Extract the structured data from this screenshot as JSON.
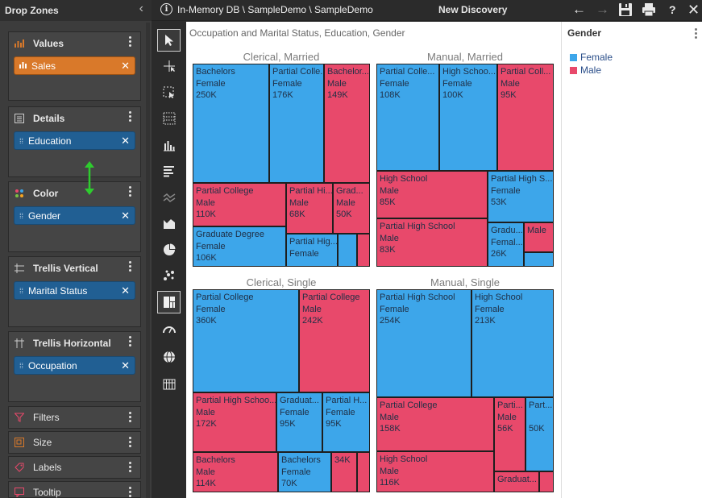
{
  "drop_zones": {
    "title": "Drop Zones",
    "zones": [
      {
        "name": "Values",
        "icon": "bar-chart-icon",
        "pill": "Sales",
        "pill_color": "#d9792a"
      },
      {
        "name": "Details",
        "icon": "list-icon",
        "pill": "Education"
      },
      {
        "name": "Color",
        "icon": "palette-icon",
        "pill": "Gender"
      },
      {
        "name": "Trellis Vertical",
        "icon": "rows-icon",
        "pill": "Marital Status"
      },
      {
        "name": "Trellis Horizontal",
        "icon": "columns-icon",
        "pill": "Occupation"
      }
    ],
    "mini": [
      {
        "name": "Filters",
        "icon": "filter-icon"
      },
      {
        "name": "Size",
        "icon": "size-icon"
      },
      {
        "name": "Labels",
        "icon": "tag-icon"
      },
      {
        "name": "Tooltip",
        "icon": "tooltip-icon"
      }
    ]
  },
  "topbar": {
    "path": "In-Memory DB \\ SampleDemo \\ SampleDemo",
    "title": "New Discovery"
  },
  "chart": {
    "title": "Occupation and Marital Status, Education, Gender",
    "colors": {
      "Female": "#3da6ea",
      "Male": "#e8496b"
    }
  },
  "chart_data": {
    "type": "treemap",
    "title": "Occupation and Marital Status, Education, Gender",
    "panels": [
      {
        "title": "Clerical, Married",
        "cells": [
          {
            "lines": [
              "Bachelors",
              "Female",
              "250K"
            ],
            "gender": "Female"
          },
          {
            "lines": [
              "Partial Colle...",
              "Female",
              "176K"
            ],
            "gender": "Female"
          },
          {
            "lines": [
              "Bachelor...",
              "Male",
              "149K"
            ],
            "gender": "Male"
          },
          {
            "lines": [
              "Partial College",
              "Male",
              "110K"
            ],
            "gender": "Male"
          },
          {
            "lines": [
              "Partial Hi...",
              "Male",
              "68K"
            ],
            "gender": "Male"
          },
          {
            "lines": [
              "Grad...",
              "Male",
              "50K"
            ],
            "gender": "Male"
          },
          {
            "lines": [
              "Graduate Degree",
              "Female",
              "106K"
            ],
            "gender": "Female"
          },
          {
            "lines": [
              "Partial Hig...",
              "Female"
            ],
            "gender": "Female"
          },
          {
            "lines": [],
            "gender": "Female"
          },
          {
            "lines": [],
            "gender": "Male"
          }
        ]
      },
      {
        "title": "Manual, Married",
        "cells": [
          {
            "lines": [
              "Partial Colle...",
              "Female",
              "108K"
            ],
            "gender": "Female"
          },
          {
            "lines": [
              "High Schoo...",
              "Female",
              "100K"
            ],
            "gender": "Female"
          },
          {
            "lines": [
              "Partial Coll...",
              "Male",
              "95K"
            ],
            "gender": "Male"
          },
          {
            "lines": [
              "High School",
              "Male",
              "85K"
            ],
            "gender": "Male"
          },
          {
            "lines": [
              "Partial High S...",
              "Female",
              "53K"
            ],
            "gender": "Female"
          },
          {
            "lines": [
              "Partial High School",
              "Male",
              "83K"
            ],
            "gender": "Male"
          },
          {
            "lines": [
              "Gradu...",
              "Femal...",
              "26K"
            ],
            "gender": "Female"
          },
          {
            "lines": [
              "Male"
            ],
            "gender": "Male"
          },
          {
            "lines": [],
            "gender": "Female"
          }
        ]
      },
      {
        "title": "Clerical, Single",
        "cells": [
          {
            "lines": [
              "Partial College",
              "Female",
              "360K"
            ],
            "gender": "Female"
          },
          {
            "lines": [
              "Partial College",
              "Male",
              "242K"
            ],
            "gender": "Male"
          },
          {
            "lines": [
              "Partial High Schoo...",
              "Male",
              "172K"
            ],
            "gender": "Male"
          },
          {
            "lines": [
              "Graduat...",
              "Female",
              "95K"
            ],
            "gender": "Female"
          },
          {
            "lines": [
              "Partial H...",
              "Female",
              "95K"
            ],
            "gender": "Female"
          },
          {
            "lines": [
              "Bachelors",
              "Male",
              "114K"
            ],
            "gender": "Male"
          },
          {
            "lines": [
              "Bachelors",
              "Female",
              "70K"
            ],
            "gender": "Female"
          },
          {
            "lines": [
              "34K"
            ],
            "gender": "Male"
          },
          {
            "lines": [],
            "gender": "Male"
          }
        ]
      },
      {
        "title": "Manual, Single",
        "cells": [
          {
            "lines": [
              "Partial High School",
              "Female",
              "254K"
            ],
            "gender": "Female"
          },
          {
            "lines": [
              "High School",
              "Female",
              "213K"
            ],
            "gender": "Female"
          },
          {
            "lines": [
              "Partial College",
              "Male",
              "158K"
            ],
            "gender": "Male"
          },
          {
            "lines": [
              "Parti...",
              "Male",
              "56K"
            ],
            "gender": "Male"
          },
          {
            "lines": [
              "Part...",
              "",
              "50K"
            ],
            "gender": "Female"
          },
          {
            "lines": [
              "High School",
              "Male",
              "116K"
            ],
            "gender": "Male"
          },
          {
            "lines": [
              "Graduat..."
            ],
            "gender": "Male"
          },
          {
            "lines": [],
            "gender": "Male"
          }
        ]
      }
    ]
  },
  "legend": {
    "title": "Gender",
    "items": [
      {
        "label": "Female",
        "color": "#3da6ea"
      },
      {
        "label": "Male",
        "color": "#e8496b"
      }
    ]
  }
}
